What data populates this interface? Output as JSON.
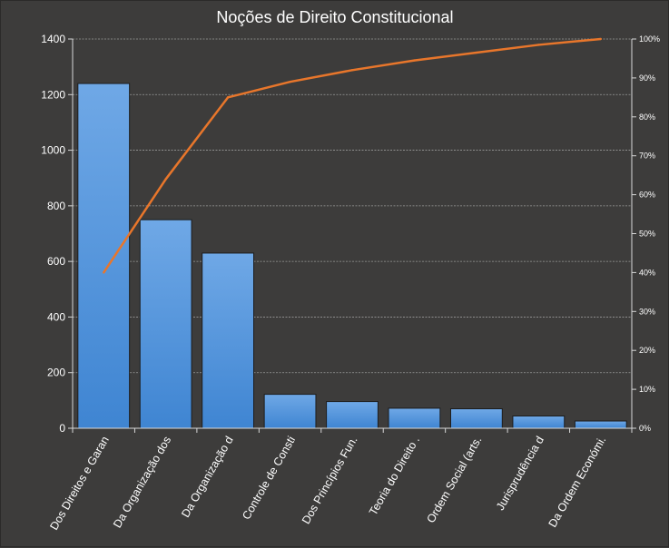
{
  "chart_data": {
    "type": "bar",
    "title": "Noções de Direito Constitucional",
    "categories": [
      "Dos Direitos e Garan",
      "Da Organização dos",
      "Da Organização d",
      "Controle de Consti",
      "Dos Princípios Fun.",
      "Teoria do Direito .",
      "Ordem Social (arts.",
      "Jurisprudência d",
      "Da Ordem Económi."
    ],
    "series": [
      {
        "values": [
          1240,
          750,
          630,
          122,
          96,
          72,
          70,
          44,
          26
        ],
        "color": "#4a90d9",
        "axis": "left"
      },
      {
        "values": [
          0.4,
          0.64,
          0.85,
          0.89,
          0.92,
          0.945,
          0.965,
          0.985,
          1.0
        ],
        "color": "#e8762b",
        "axis": "right",
        "type": "line"
      }
    ],
    "ylim": [
      0,
      1400
    ],
    "y_ticks": [
      0,
      200,
      400,
      600,
      800,
      1000,
      1200,
      1400
    ],
    "y2lim": [
      0,
      1
    ],
    "y2_ticks": [
      "0%",
      "10%",
      "20%",
      "30%",
      "40%",
      "50%",
      "60%",
      "70%",
      "80%",
      "90%",
      "100%"
    ],
    "grid": true,
    "legend": "none"
  }
}
